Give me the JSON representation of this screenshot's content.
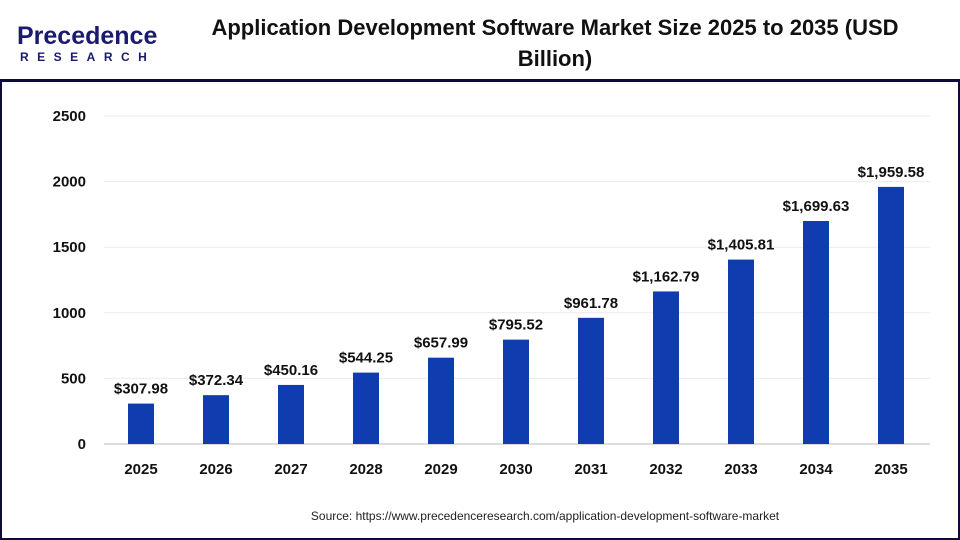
{
  "logo": {
    "main": "Precedence",
    "sub": "RESEARCH"
  },
  "source": "Source: https://www.precedenceresearch.com/application-development-software-market",
  "colors": {
    "bar": "#0f3db0",
    "frame": "#0d0b3e"
  },
  "chart_data": {
    "type": "bar",
    "title": "Application Development Software Market  Size 2025 to 2035 (USD Billion)",
    "categories": [
      "2025",
      "2026",
      "2027",
      "2028",
      "2029",
      "2030",
      "2031",
      "2032",
      "2033",
      "2034",
      "2035"
    ],
    "values": [
      307.98,
      372.34,
      450.16,
      544.25,
      657.99,
      795.52,
      961.78,
      1162.79,
      1405.81,
      1699.63,
      1959.58
    ],
    "data_labels": [
      "$307.98",
      "$372.34",
      "$450.16",
      "$544.25",
      "$657.99",
      "$795.52",
      "$961.78",
      "$1,162.79",
      "$1,405.81",
      "$1,699.63",
      "$1,959.58"
    ],
    "yticks": [
      "0",
      "500",
      "1000",
      "1500",
      "2000",
      "2500"
    ],
    "ylim": [
      0,
      2500
    ],
    "xlabel": "",
    "ylabel": "",
    "grid": true,
    "legend": "none"
  }
}
